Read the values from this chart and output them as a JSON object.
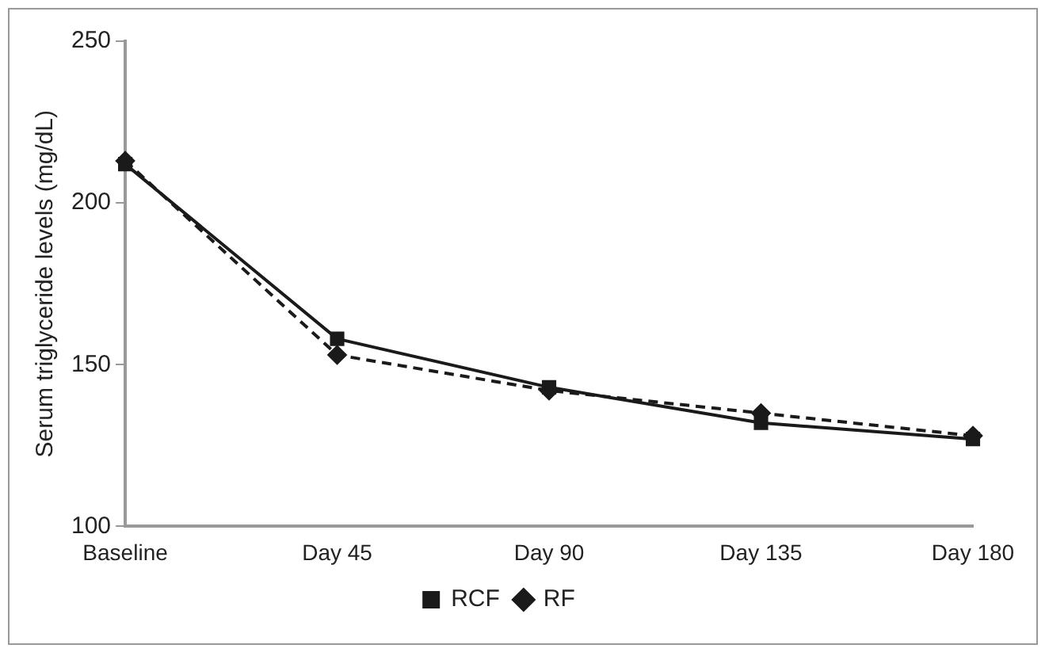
{
  "chart_data": {
    "type": "line",
    "ylabel": "Serum triglyceride levels (mg/dL)",
    "categories": [
      "Baseline",
      "Day 45",
      "Day 90",
      "Day 135",
      "Day 180"
    ],
    "series": [
      {
        "name": "RCF",
        "color": "#1a1a1a",
        "values": [
          212,
          158,
          143,
          132,
          127
        ],
        "marker": "square",
        "line_style": "solid"
      },
      {
        "name": "RF",
        "color": "#1a1a1a",
        "values": [
          213,
          153,
          142,
          135,
          128
        ],
        "marker": "diamond",
        "line_style": "dashed"
      }
    ],
    "ylim": [
      100,
      250
    ],
    "yticks": [
      100,
      150,
      200,
      250
    ],
    "grid": false,
    "legend": "bottom"
  }
}
